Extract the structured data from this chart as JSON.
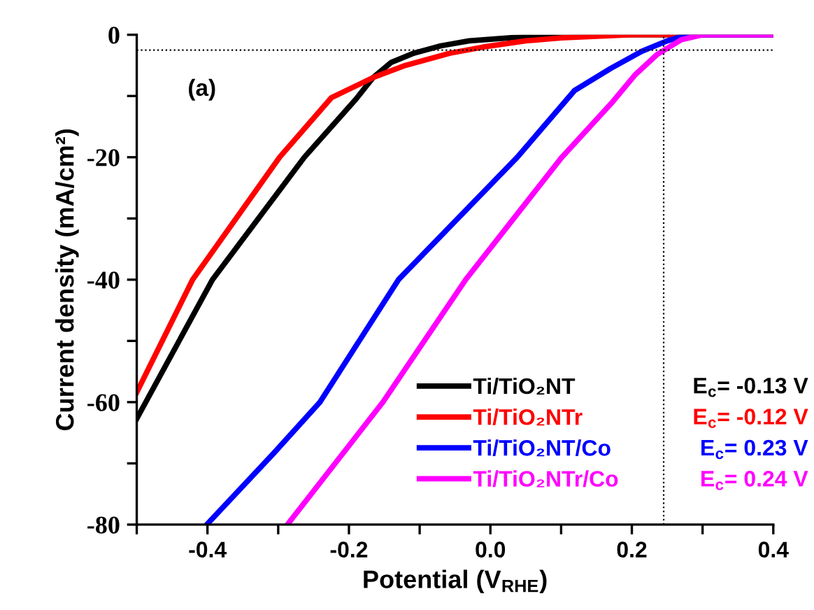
{
  "chart_data": {
    "type": "line",
    "xlabel": "Potential (V$_{RHE}$)",
    "ylabel": "Current density (mA/cm²)",
    "xlim": [
      -0.5,
      0.4
    ],
    "ylim": [
      -80,
      0
    ],
    "xticks": [
      {
        "value": -0.5,
        "label": null
      },
      -0.4,
      {
        "value": -0.3,
        "label": null
      },
      -0.2,
      {
        "value": -0.1,
        "label": null
      },
      {
        "value": 0,
        "label": "0.0"
      },
      {
        "value": 0.1,
        "label": null
      },
      0.2,
      {
        "value": 0.3,
        "label": null
      },
      0.4
    ],
    "yticks": [
      -80,
      {
        "value": -70,
        "label": null
      },
      -60,
      {
        "value": -50,
        "label": null
      },
      -40,
      {
        "value": -30,
        "label": null
      },
      -20,
      {
        "value": -10,
        "label": null
      },
      0
    ],
    "grid": false,
    "legend": "bottom right",
    "marker": "none",
    "line_style": "solid",
    "series": [
      {
        "name": "Ti/TiO₂NT",
        "color": "#000000",
        "x": [
          -0.5,
          -0.393,
          -0.263,
          -0.19,
          -0.166,
          -0.14,
          -0.108,
          -0.07,
          -0.03,
          0.05,
          0.15,
          0.4
        ],
        "values": [
          -62.7,
          -40,
          -20,
          -10.5,
          -7,
          -4.5,
          -3,
          -1.8,
          -1,
          -0.3,
          0,
          0
        ]
      },
      {
        "name": "Ti/TiO₂NTr",
        "color": "#ff0000",
        "x": [
          -0.5,
          -0.421,
          -0.298,
          -0.225,
          -0.166,
          -0.12,
          -0.057,
          -0.01,
          0.05,
          0.1,
          0.2,
          0.4
        ],
        "values": [
          -58.4,
          -40,
          -20,
          -10.3,
          -7,
          -5,
          -3,
          -2,
          -1,
          -0.5,
          0,
          0
        ]
      },
      {
        "name": "Ti/TiO₂NT/Co",
        "color": "#0000ff",
        "x": [
          -0.401,
          -0.306,
          -0.241,
          -0.13,
          0.038,
          0.119,
          0.17,
          0.214,
          0.25,
          0.27,
          0.29,
          0.4
        ],
        "values": [
          -80,
          -68.3,
          -60,
          -40,
          -20,
          -9.1,
          -5.5,
          -2.7,
          -1,
          -0.3,
          0,
          0
        ]
      },
      {
        "name": "Ti/TiO₂NTr/Co",
        "color": "#ff00ff",
        "x": [
          -0.287,
          -0.152,
          -0.035,
          0.101,
          0.171,
          0.205,
          0.236,
          0.27,
          0.3,
          0.4
        ],
        "values": [
          -80,
          -60,
          -40,
          -20,
          -11.2,
          -6.5,
          -3.2,
          -0.8,
          0,
          0
        ]
      }
    ],
    "ref_lines": [
      {
        "axis": "x",
        "value": 0.245,
        "color": "#000000",
        "line_style": "dotted"
      },
      {
        "axis": "y",
        "value": -2.5,
        "color": "#000000",
        "line_style": "dotted"
      }
    ],
    "annotations": [
      "(a)",
      "E$_{c}$= -0.13 V",
      "E$_{c}$= -0.12 V",
      "E$_{c}$= 0.23 V",
      "E$_{c}$= 0.24 V"
    ]
  }
}
